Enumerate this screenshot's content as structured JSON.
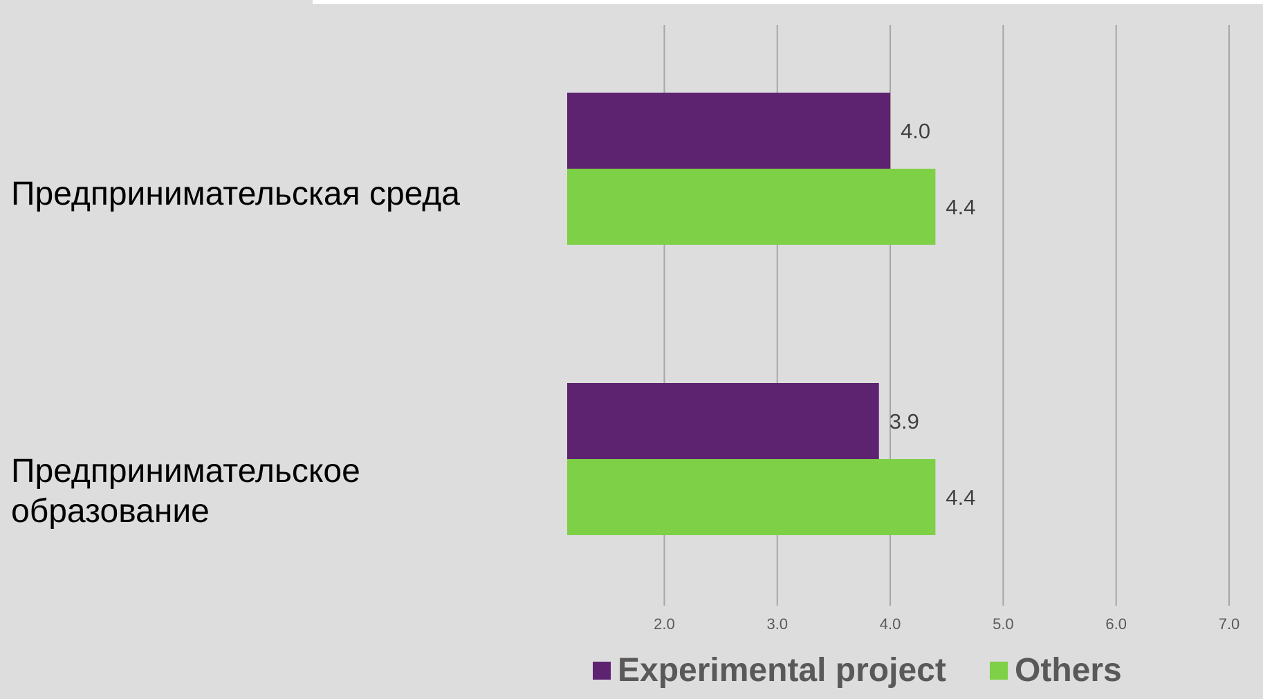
{
  "chart_data": {
    "type": "bar",
    "orientation": "horizontal",
    "categories": [
      "Предпринимательская среда",
      "Предпринимательское\nобразование"
    ],
    "series": [
      {
        "name": "Experimental project",
        "values": [
          4.0,
          3.9
        ],
        "labels": [
          "4.0",
          "3.9"
        ],
        "color": "#5e2370"
      },
      {
        "name": "Others",
        "values": [
          4.4,
          4.4
        ],
        "labels": [
          "4.4",
          "4.4"
        ],
        "color": "#7ed046"
      }
    ],
    "x_ticks": [
      "2.0",
      "3.0",
      "4.0",
      "5.0",
      "6.0",
      "7.0"
    ],
    "x_tick_values": [
      2,
      3,
      4,
      5,
      6,
      7
    ],
    "xlim": [
      1.14,
      7.0
    ],
    "grid": true,
    "legend_position": "bottom",
    "title": "",
    "xlabel": "",
    "ylabel": ""
  },
  "colors": {
    "background": "#dddddd",
    "gridline": "#a6a6a6",
    "tick_text": "#595959",
    "data_label_text": "#404040"
  }
}
